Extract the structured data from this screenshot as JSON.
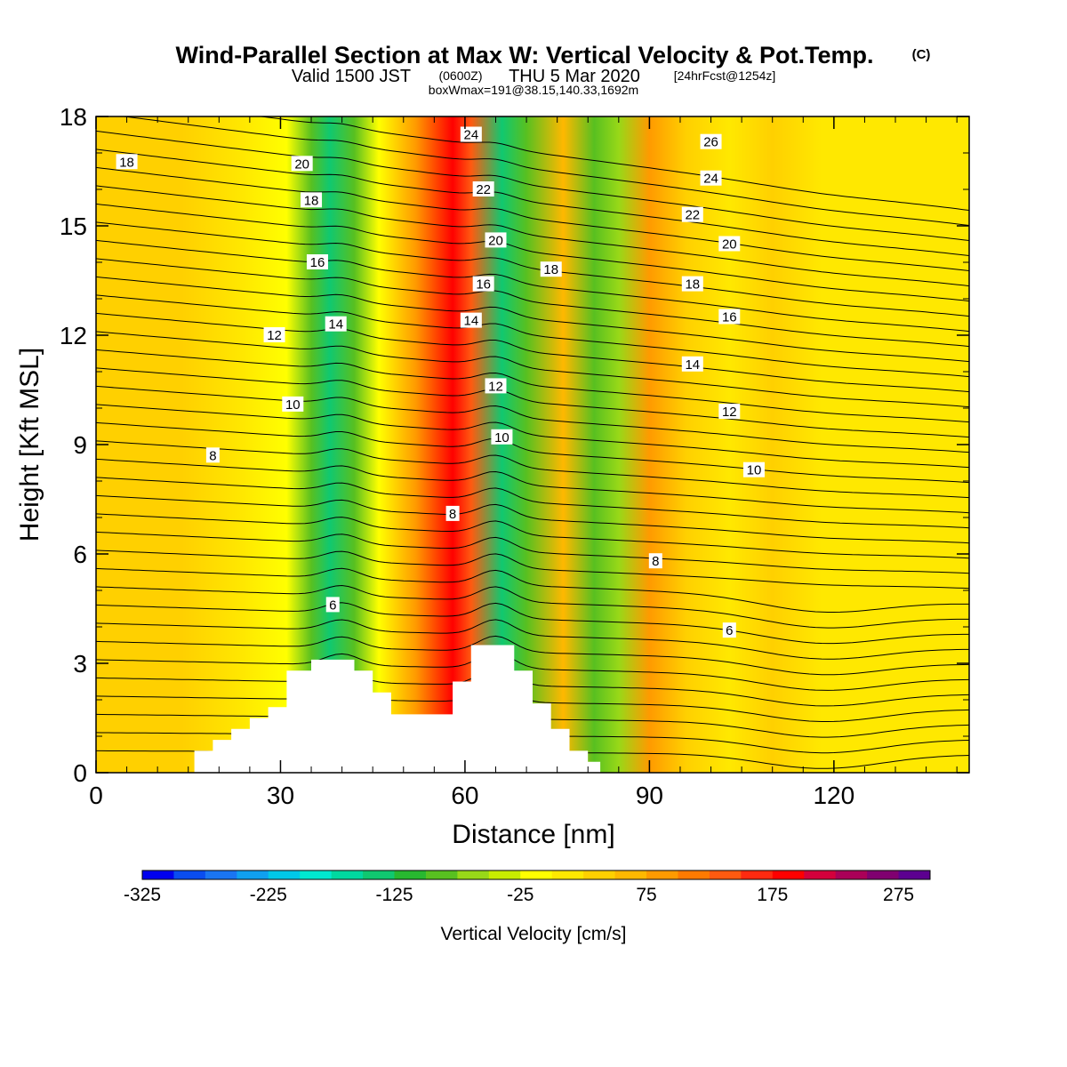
{
  "header": {
    "title": "Wind-Parallel Section at Max W: Vertical Velocity & Pot.Temp.",
    "copyright": "(C)",
    "valid_main": "Valid 1500 JST",
    "valid_utc": "(0600Z)",
    "valid_date": "THU 5 Mar 2020",
    "forecast": "[24hrFcst@1254z]",
    "box_info": "boxWmax=191@38.15,140.33,1692m"
  },
  "chart_data": {
    "type": "heatmap",
    "xlabel": "Distance [nm]",
    "ylabel": "Height [Kft MSL]",
    "xlim": [
      0,
      142
    ],
    "ylim": [
      0,
      18
    ],
    "x_ticks": [
      "0",
      "30",
      "60",
      "90",
      "120"
    ],
    "y_ticks": [
      "0",
      "3",
      "6",
      "9",
      "12",
      "15",
      "18"
    ],
    "colorbar": {
      "label": "Vertical Velocity [cm/s]",
      "tick_labels": [
        "-325",
        "-225",
        "-125",
        "-25",
        "75",
        "175",
        "275"
      ],
      "colors": [
        "#0000ee",
        "#0a4df0",
        "#1a75f2",
        "#10a0f0",
        "#00c8e8",
        "#00e8d0",
        "#00d8a0",
        "#10c870",
        "#28b830",
        "#58c020",
        "#98d818",
        "#c8ec00",
        "#ffff00",
        "#ffe800",
        "#ffd000",
        "#ffb800",
        "#ff9a00",
        "#ff7a00",
        "#ff5a10",
        "#ff2a10",
        "#ff0000",
        "#d4003c",
        "#aa0058",
        "#800070",
        "#5c0090"
      ]
    },
    "velocity_bands": [
      {
        "x": 0,
        "w": 1.5
      },
      {
        "x": 14,
        "w": 22
      },
      {
        "x": 24,
        "w": -14
      },
      {
        "x": 31,
        "w": -38
      },
      {
        "x": 35,
        "w": -115
      },
      {
        "x": 38,
        "w": -170
      },
      {
        "x": 42,
        "w": -120
      },
      {
        "x": 46,
        "w": -40
      },
      {
        "x": 52,
        "w": 70
      },
      {
        "x": 58,
        "w": 165
      },
      {
        "x": 61,
        "w": 120
      },
      {
        "x": 66,
        "w": -170
      },
      {
        "x": 70,
        "w": -120
      },
      {
        "x": 76,
        "w": 35
      },
      {
        "x": 81,
        "w": -110
      },
      {
        "x": 85,
        "w": -90
      },
      {
        "x": 90,
        "w": 65
      },
      {
        "x": 96,
        "w": 18
      },
      {
        "x": 103,
        "w": -15
      },
      {
        "x": 110,
        "w": 5
      },
      {
        "x": 118,
        "w": -10
      },
      {
        "x": 130,
        "w": -25
      },
      {
        "x": 142,
        "w": -12
      }
    ],
    "theta_labels": [
      {
        "text": "18",
        "x": 5,
        "y": 16.75
      },
      {
        "text": "20",
        "x": 33.5,
        "y": 16.7
      },
      {
        "text": "18",
        "x": 35,
        "y": 15.7
      },
      {
        "text": "16",
        "x": 36,
        "y": 14
      },
      {
        "text": "14",
        "x": 39,
        "y": 12.3
      },
      {
        "text": "12",
        "x": 29,
        "y": 12
      },
      {
        "text": "10",
        "x": 32,
        "y": 10.1
      },
      {
        "text": "8",
        "x": 19,
        "y": 8.7
      },
      {
        "text": "6",
        "x": 38.5,
        "y": 4.6
      },
      {
        "text": "24",
        "x": 61,
        "y": 17.5
      },
      {
        "text": "22",
        "x": 63,
        "y": 16
      },
      {
        "text": "20",
        "x": 65,
        "y": 14.6
      },
      {
        "text": "16",
        "x": 63,
        "y": 13.4
      },
      {
        "text": "14",
        "x": 61,
        "y": 12.4
      },
      {
        "text": "12",
        "x": 65,
        "y": 10.6
      },
      {
        "text": "10",
        "x": 66,
        "y": 9.2
      },
      {
        "text": "8",
        "x": 58,
        "y": 7.1
      },
      {
        "text": "18",
        "x": 74,
        "y": 13.8
      },
      {
        "text": "26",
        "x": 100,
        "y": 17.3
      },
      {
        "text": "24",
        "x": 100,
        "y": 16.3
      },
      {
        "text": "22",
        "x": 97,
        "y": 15.3
      },
      {
        "text": "20",
        "x": 103,
        "y": 14.5
      },
      {
        "text": "18",
        "x": 97,
        "y": 13.4
      },
      {
        "text": "16",
        "x": 103,
        "y": 12.5
      },
      {
        "text": "14",
        "x": 97,
        "y": 11.2
      },
      {
        "text": "12",
        "x": 103,
        "y": 9.9
      },
      {
        "text": "10",
        "x": 107,
        "y": 8.3
      },
      {
        "text": "8",
        "x": 91,
        "y": 5.8
      },
      {
        "text": "6",
        "x": 103,
        "y": 3.9
      }
    ],
    "terrain": [
      [
        16,
        0
      ],
      [
        16,
        0.6
      ],
      [
        19,
        0.6
      ],
      [
        19,
        0.9
      ],
      [
        22,
        0.9
      ],
      [
        22,
        1.2
      ],
      [
        25,
        1.2
      ],
      [
        25,
        1.5
      ],
      [
        28,
        1.5
      ],
      [
        28,
        1.8
      ],
      [
        31,
        1.8
      ],
      [
        31,
        2.8
      ],
      [
        35,
        2.8
      ],
      [
        35,
        3.1
      ],
      [
        42,
        3.1
      ],
      [
        42,
        2.8
      ],
      [
        45,
        2.8
      ],
      [
        45,
        2.2
      ],
      [
        48,
        2.2
      ],
      [
        48,
        1.6
      ],
      [
        58,
        1.6
      ],
      [
        58,
        2.5
      ],
      [
        61,
        2.5
      ],
      [
        61,
        3.5
      ],
      [
        68,
        3.5
      ],
      [
        68,
        2.8
      ],
      [
        71,
        2.8
      ],
      [
        71,
        1.9
      ],
      [
        74,
        1.9
      ],
      [
        74,
        1.2
      ],
      [
        77,
        1.2
      ],
      [
        77,
        0.6
      ],
      [
        80,
        0.6
      ],
      [
        80,
        0.3
      ],
      [
        82,
        0.3
      ],
      [
        82,
        0
      ]
    ]
  }
}
